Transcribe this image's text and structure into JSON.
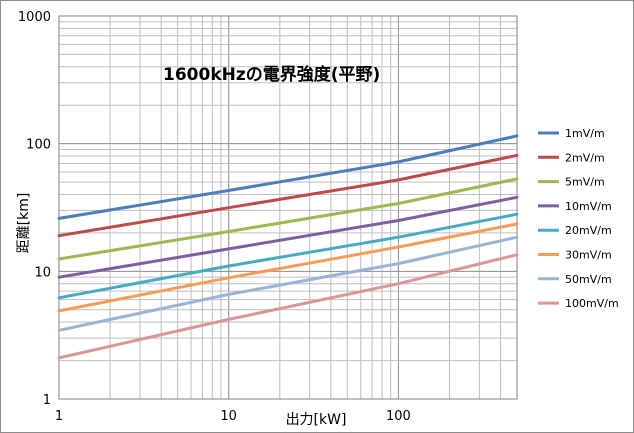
{
  "chart_data": {
    "type": "line",
    "title": "1600kHzの電界強度(平野)",
    "xlabel": "出力[kW]",
    "ylabel": "距離[km]",
    "x_scale": "log",
    "y_scale": "log",
    "xlim": [
      1,
      500
    ],
    "ylim": [
      1,
      1000
    ],
    "x_ticks": [
      "1",
      "10",
      "100"
    ],
    "y_ticks": [
      "1",
      "10",
      "100",
      "1000"
    ],
    "grid": true,
    "legend_position": "right",
    "x": [
      1,
      10,
      100,
      500
    ],
    "series": [
      {
        "name": "1mV/m",
        "color": "#4a7ebb",
        "values": [
          26.0,
          43.0,
          72.0,
          115.0
        ]
      },
      {
        "name": "2mV/m",
        "color": "#be4b48",
        "values": [
          19.0,
          31.5,
          52.0,
          81.0
        ]
      },
      {
        "name": "5mV/m",
        "color": "#98b954",
        "values": [
          12.5,
          20.5,
          34.0,
          53.0
        ]
      },
      {
        "name": "10mV/m",
        "color": "#7d5fa0",
        "values": [
          9.0,
          15.0,
          25.0,
          38.0
        ]
      },
      {
        "name": "20mV/m",
        "color": "#46aac5",
        "values": [
          6.2,
          11.0,
          18.5,
          28.0
        ]
      },
      {
        "name": "30mV/m",
        "color": "#f59d56",
        "values": [
          4.9,
          8.9,
          15.5,
          23.5
        ]
      },
      {
        "name": "50mV/m",
        "color": "#97b3d8",
        "values": [
          3.45,
          6.6,
          11.5,
          18.5
        ]
      },
      {
        "name": "100mV/m",
        "color": "#d99694",
        "values": [
          2.1,
          4.2,
          8.0,
          13.5
        ]
      }
    ]
  }
}
